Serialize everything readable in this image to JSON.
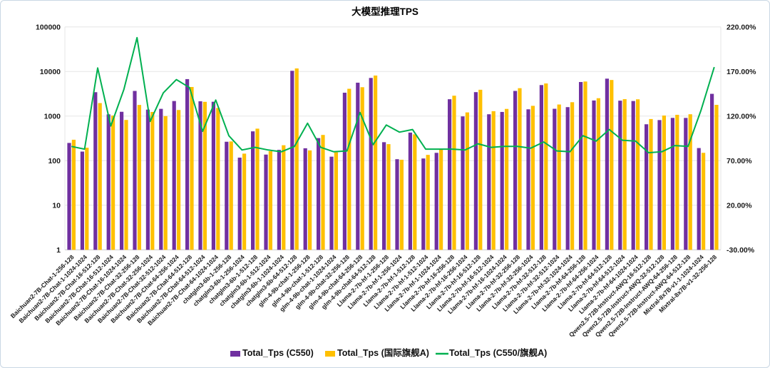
{
  "window": {
    "border_color": "#c9d7e4",
    "background": "#ffffff"
  },
  "chart_data": {
    "type": "bar",
    "title": "大模型推理TPS",
    "grid": "horizontal",
    "legend_position": "bottom",
    "colors": {
      "bar_c550": "#7030A0",
      "bar_flagship": "#FFC000",
      "line_ratio": "#00B050",
      "gridline": "#e6e6e6",
      "axis_line": "#c8c8c8"
    },
    "left_axis": {
      "scale": "log",
      "min": 1,
      "max": 100000,
      "tick_labels": [
        "1",
        "10",
        "100",
        "1000",
        "10000",
        "100000"
      ],
      "tick_values": [
        1,
        10,
        100,
        1000,
        10000,
        100000
      ]
    },
    "right_axis": {
      "min": -30,
      "max": 220,
      "tick_labels": [
        "-30.00%",
        "20.00%",
        "70.00%",
        "120.00%",
        "170.00%",
        "220.00%"
      ],
      "tick_values": [
        -30,
        20,
        70,
        120,
        170,
        220
      ]
    },
    "categories": [
      "Baichuan2-7B-Chat-1-256-128",
      "Baichuan2-7B-Chat-1-1024-1024",
      "Baichuan2-7B-Chat-16-512-128",
      "Baichuan2-7B-Chat-16-512-1024",
      "Baichuan2-7B-Chat-16-1024-1024",
      "Baichuan2-7B-Chat-32-256-128",
      "Baichuan2-7B-Chat-32-256-1024",
      "Baichuan2-7B-Chat-32-512-1024",
      "Baichuan2-7B-Chat-64-256-1024",
      "Baichuan2-7B-Chat-64-512-128",
      "Baichuan2-7B-Chat-64-512-1024",
      "Baichuan2-7B-Chat-64-1024-1024",
      "chatglm3-6b-1-256-128",
      "chatglm3-6b-1-256-1024",
      "chatglm3-6b-1-512-128",
      "chatglm3-6b-1-512-1024",
      "chatglm3-6b-1-1024-1024",
      "chatglm3-6b-64-512-128",
      "glm-4-9b-chat-1-256-128",
      "glm-4-9b-chat-1-512-128",
      "glm-4-9b-chat-1-1024-1024",
      "glm-4-9b-chat-32-256-128",
      "glm-4-9b-chat-64-256-128",
      "glm-4-9b-chat-64-512-128",
      "Llama-2-7b-hf-1-256-128",
      "Llama-2-7b-hf-1-256-1024",
      "Llama-2-7b-hf-1-512-128",
      "Llama-2-7b-hf-1-512-1024",
      "Llama-2-7b-hf-1-1024-1024",
      "Llama-2-7b-hf-16-256-128",
      "Llama-2-7b-hf-16-256-1024",
      "Llama-2-7b-hf-16-512-128",
      "Llama-2-7b-hf-16-512-1024",
      "Llama-2-7b-hf-16-1024-1024",
      "Llama-2-7b-hf-32-256-128",
      "Llama-2-7b-hf-32-256-1024",
      "Llama-2-7b-hf-32-512-128",
      "Llama-2-7b-hf-32-512-1024",
      "Llama-2-7b-hf-32-1024-1024",
      "Llama-2-7b-hf-64-256-128",
      "Llama-2-7b-hf-64-256-1024",
      "Llama-2-7b-hf-64-512-128",
      "Llama-2-7b-hf-64-512-1024",
      "Llama-2-7b-hf-64-1024-1024",
      "Qwen2.5-72B-Instruct-AWQ-16-512-128",
      "Qwen2.5-72B-Instruct-AWQ-32-512-128",
      "Qwen2.5-72B-Instruct-AWQ-64-256-128",
      "Qwen2.5-72B-Instruct-AWQ-64-512-128",
      "Mixtral-8x7B-v1-1-1024-1024",
      "Mixtral-8x7B-v1-32-256-128"
    ],
    "series": [
      {
        "name": "Total_Tps (C550)",
        "type": "bar",
        "axis": "left",
        "color": "#7030A0",
        "values": [
          250,
          160,
          3440,
          1095,
          1250,
          3670,
          1400,
          1455,
          2180,
          6760,
          2150,
          2100,
          266,
          117,
          455,
          137,
          175,
          10380,
          190,
          321,
          123,
          3350,
          5620,
          7180,
          260,
          108,
          427,
          112,
          150,
          2390,
          985,
          3450,
          1100,
          1240,
          3670,
          1420,
          4970,
          1460,
          1590,
          5820,
          2240,
          6920,
          2220,
          2180,
          656,
          815,
          912,
          910,
          192,
          3160
        ]
      },
      {
        "name": "Total_Tps (国际旗舰A)",
        "type": "bar",
        "axis": "left",
        "color": "#FFC000",
        "values": [
          295,
          195,
          1960,
          1030,
          820,
          1780,
          1240,
          1000,
          1370,
          4500,
          2090,
          1520,
          270,
          144,
          523,
          163,
          222,
          11740,
          170,
          378,
          154,
          4100,
          4450,
          8130,
          235,
          105,
          390,
          135,
          180,
          2870,
          1210,
          3900,
          1290,
          1450,
          4230,
          1700,
          5400,
          1820,
          2050,
          5970,
          2520,
          6460,
          2400,
          2380,
          860,
          1030,
          1070,
          1100,
          150,
          1790
        ]
      },
      {
        "name": "Total_Tps (C550/旗舰A)",
        "type": "line",
        "axis": "right",
        "color": "#00B050",
        "values_percent": [
          86,
          83,
          174,
          109,
          150,
          208,
          114,
          146,
          161,
          152,
          103,
          138,
          98,
          82,
          85,
          82,
          80,
          86,
          112,
          85,
          80,
          81,
          124,
          88,
          110,
          102,
          105,
          83,
          83,
          83,
          82,
          89,
          85,
          86,
          86,
          84,
          91,
          81,
          80,
          98,
          92,
          105,
          93,
          92,
          79,
          80,
          87,
          86,
          127,
          175
        ]
      }
    ]
  }
}
